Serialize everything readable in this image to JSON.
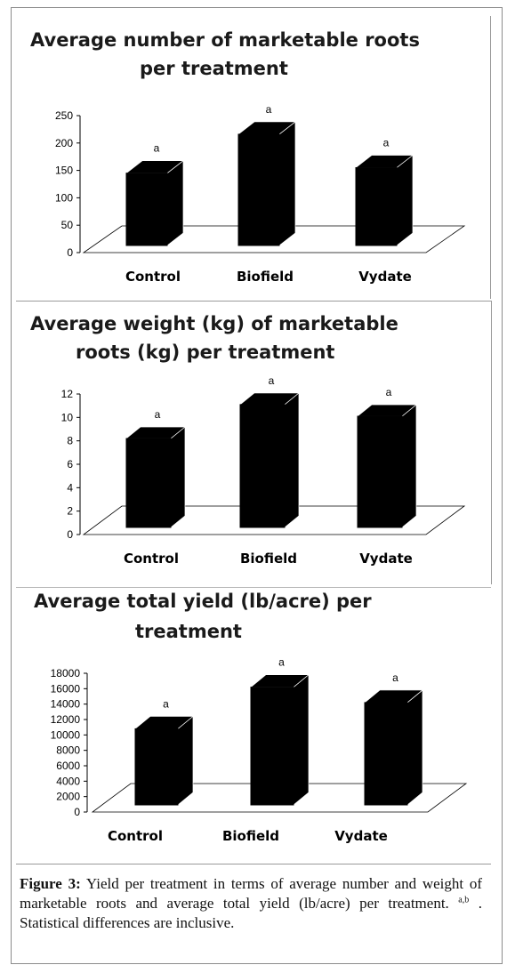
{
  "chart_data": [
    {
      "type": "bar",
      "title_lines": [
        "Average number of marketable roots",
        "per treatment"
      ],
      "categories": [
        "Control",
        "Biofield",
        "Vydate"
      ],
      "values": [
        145,
        216,
        155
      ],
      "significance": [
        "a",
        "a",
        "a"
      ],
      "ylim": [
        0,
        250
      ],
      "yticks": [
        "0",
        "50",
        "100",
        "150",
        "200",
        "250"
      ],
      "bar_color": "#000000",
      "grid": false,
      "legend": "none"
    },
    {
      "type": "bar",
      "title_lines": [
        "Average weight (kg) of marketable",
        "roots (kg) per treatment"
      ],
      "categories": [
        "Control",
        "Biofield",
        "Vydate"
      ],
      "values": [
        8.2,
        11.1,
        10.1
      ],
      "significance": [
        "a",
        "a",
        "a"
      ],
      "ylim": [
        0,
        12
      ],
      "yticks": [
        "0",
        "2",
        "4",
        "6",
        "8",
        "10",
        "12"
      ],
      "bar_color": "#000000",
      "grid": false,
      "legend": "none"
    },
    {
      "type": "bar",
      "title_lines": [
        "Average total yield (lb/acre) per",
        "treatment"
      ],
      "categories": [
        "Control",
        "Biofield",
        "Vydate"
      ],
      "values": [
        10800,
        16200,
        14200
      ],
      "significance": [
        "a",
        "a",
        "a"
      ],
      "ylim": [
        0,
        18000
      ],
      "yticks": [
        "0",
        "2000",
        "4000",
        "6000",
        "8000",
        "10000",
        "12000",
        "14000",
        "16000",
        "18000"
      ],
      "bar_color": "#000000",
      "grid": false,
      "legend": "none"
    }
  ],
  "caption": {
    "label": "Figure 3:",
    "text": " Yield per treatment in terms of average number and weight of marketable roots and average total yield (lb/acre) per treatment. ",
    "sup": "a,b",
    "text_end": " . Statistical differences are inclusive."
  }
}
